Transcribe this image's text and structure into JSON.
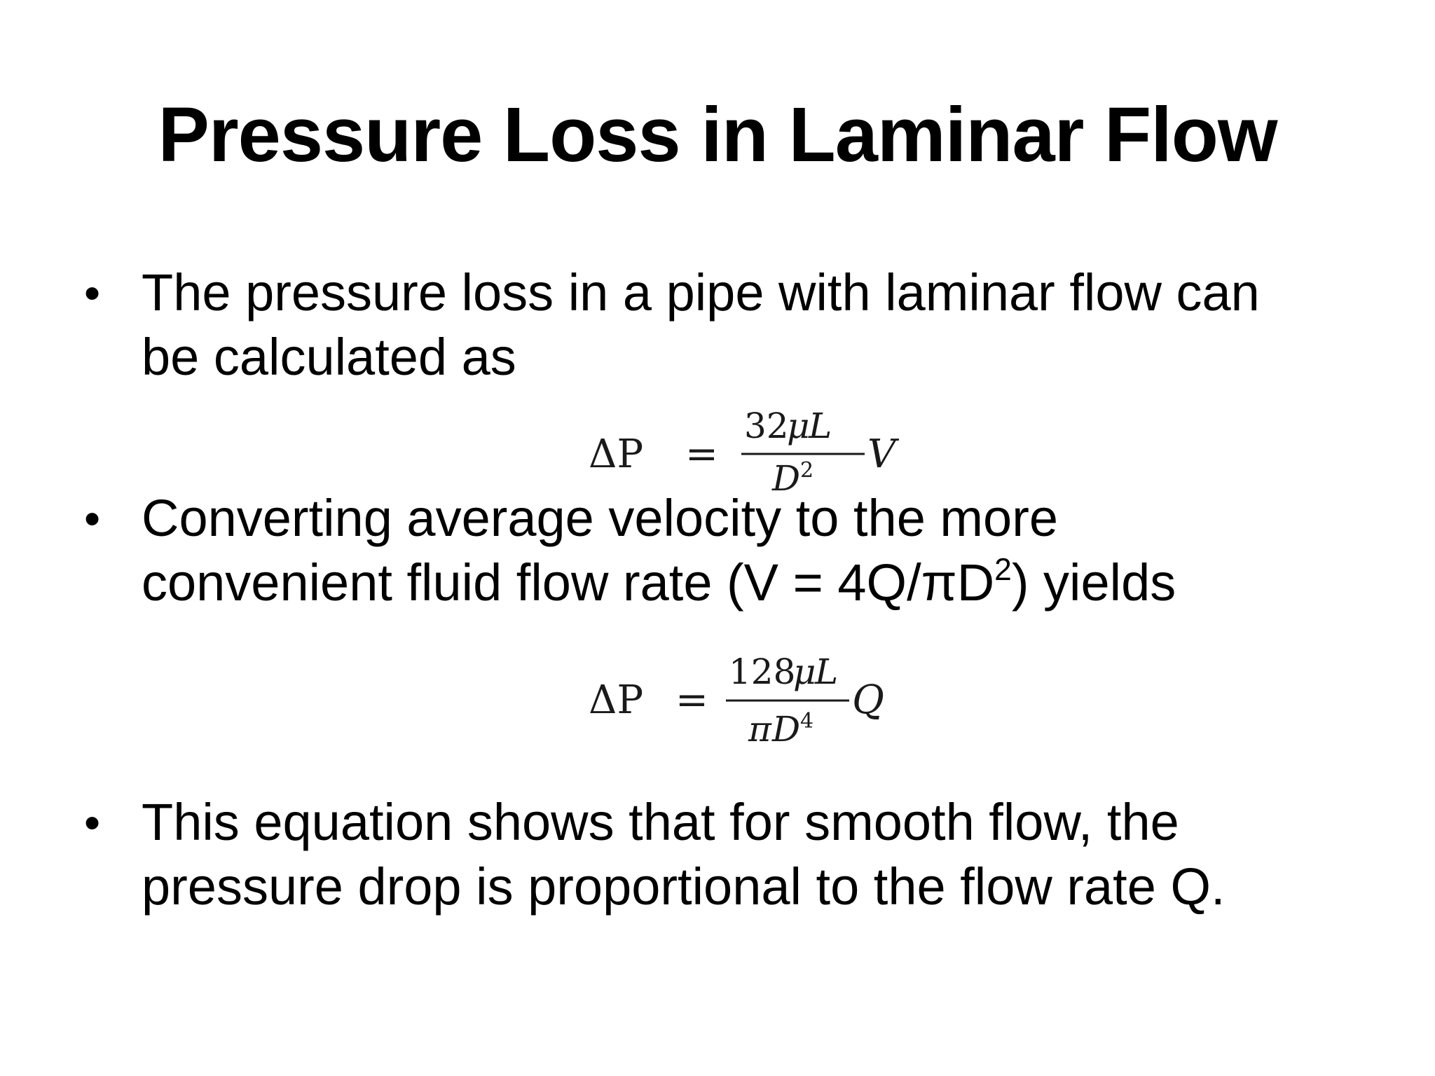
{
  "slide": {
    "title": "Pressure Loss in Laminar Flow",
    "bullet_glyph": "•",
    "bullets": [
      {
        "line1": "The pressure loss in a pipe with laminar flow can",
        "line2": "be calculated as"
      },
      {
        "line1": "Converting average velocity to the more",
        "line2_pre": "convenient fluid flow rate (V = 4Q/πD",
        "line2_sup": "2",
        "line2_post": ") yields"
      },
      {
        "line1": "This equation shows that for smooth flow, the",
        "line2": "pressure drop is proportional to the flow rate Q."
      }
    ],
    "equations": [
      {
        "lhs": "ΔP",
        "equals": "=",
        "num_coef": "32",
        "num_mu": "μ",
        "num_L": "L",
        "den_pre": "",
        "den_var": "D",
        "den_exp": "2",
        "rhs_var": "V"
      },
      {
        "lhs": "ΔP",
        "equals": "=",
        "num_coef": "128",
        "num_mu": "μ",
        "num_L": "L",
        "den_pre": "π",
        "den_var": "D",
        "den_exp": "4",
        "rhs_var": "Q"
      }
    ]
  }
}
